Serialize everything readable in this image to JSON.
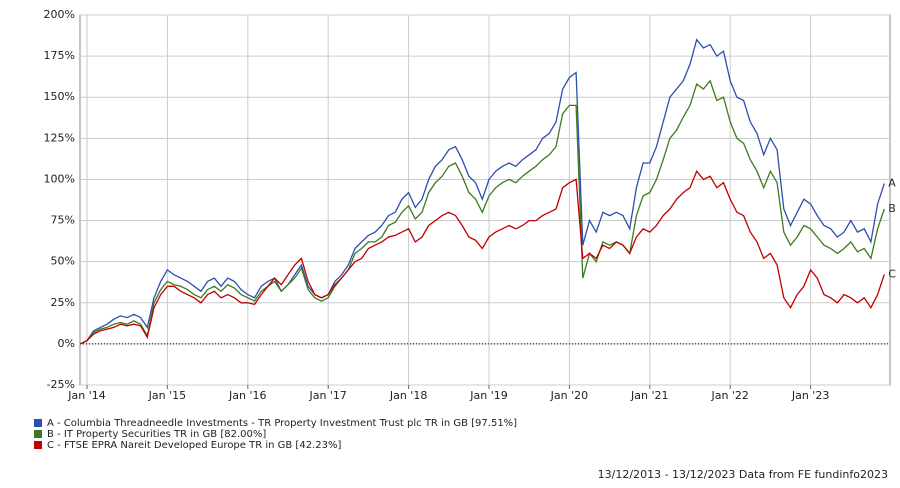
{
  "chart_data": {
    "type": "line",
    "x": [
      "2013-12",
      "2014-01",
      "2014-02",
      "2014-03",
      "2014-04",
      "2014-05",
      "2014-06",
      "2014-07",
      "2014-08",
      "2014-09",
      "2014-10",
      "2014-11",
      "2014-12",
      "2015-01",
      "2015-02",
      "2015-03",
      "2015-04",
      "2015-05",
      "2015-06",
      "2015-07",
      "2015-08",
      "2015-09",
      "2015-10",
      "2015-11",
      "2015-12",
      "2016-01",
      "2016-02",
      "2016-03",
      "2016-04",
      "2016-05",
      "2016-06",
      "2016-07",
      "2016-08",
      "2016-09",
      "2016-10",
      "2016-11",
      "2016-12",
      "2017-01",
      "2017-02",
      "2017-03",
      "2017-04",
      "2017-05",
      "2017-06",
      "2017-07",
      "2017-08",
      "2017-09",
      "2017-10",
      "2017-11",
      "2017-12",
      "2018-01",
      "2018-02",
      "2018-03",
      "2018-04",
      "2018-05",
      "2018-06",
      "2018-07",
      "2018-08",
      "2018-09",
      "2018-10",
      "2018-11",
      "2018-12",
      "2019-01",
      "2019-02",
      "2019-03",
      "2019-04",
      "2019-05",
      "2019-06",
      "2019-07",
      "2019-08",
      "2019-09",
      "2019-10",
      "2019-11",
      "2019-12",
      "2020-01",
      "2020-02",
      "2020-03",
      "2020-04",
      "2020-05",
      "2020-06",
      "2020-07",
      "2020-08",
      "2020-09",
      "2020-10",
      "2020-11",
      "2020-12",
      "2021-01",
      "2021-02",
      "2021-03",
      "2021-04",
      "2021-05",
      "2021-06",
      "2021-07",
      "2021-08",
      "2021-09",
      "2021-10",
      "2021-11",
      "2021-12",
      "2022-01",
      "2022-02",
      "2022-03",
      "2022-04",
      "2022-05",
      "2022-06",
      "2022-07",
      "2022-08",
      "2022-09",
      "2022-10",
      "2022-11",
      "2022-12",
      "2023-01",
      "2023-02",
      "2023-03",
      "2023-04",
      "2023-05",
      "2023-06",
      "2023-07",
      "2023-08",
      "2023-09",
      "2023-10",
      "2023-11",
      "2023-12"
    ],
    "series": [
      {
        "name": "A - Columbia Threadneedle Investments - TR Property Investment Trust plc TR in GB [97.51%]",
        "label": "A",
        "color": "#2b4fb0",
        "values": [
          0,
          2,
          8,
          10,
          12,
          15,
          17,
          16,
          18,
          16,
          10,
          28,
          38,
          45,
          42,
          40,
          38,
          35,
          32,
          38,
          40,
          35,
          40,
          38,
          33,
          30,
          28,
          35,
          38,
          40,
          32,
          36,
          42,
          48,
          35,
          30,
          28,
          30,
          38,
          42,
          48,
          58,
          62,
          66,
          68,
          72,
          78,
          80,
          88,
          92,
          83,
          88,
          100,
          108,
          112,
          118,
          120,
          112,
          102,
          98,
          88,
          100,
          105,
          108,
          110,
          108,
          112,
          115,
          118,
          125,
          128,
          135,
          155,
          162,
          165,
          60,
          75,
          68,
          80,
          78,
          80,
          78,
          70,
          95,
          110,
          110,
          120,
          135,
          150,
          155,
          160,
          170,
          185,
          180,
          182,
          175,
          178,
          160,
          150,
          148,
          135,
          128,
          115,
          125,
          118,
          82,
          72,
          80,
          88,
          85,
          78,
          72,
          70,
          65,
          68,
          75,
          68,
          70,
          62,
          85,
          97.51
        ]
      },
      {
        "name": "B - IT Property Securities TR in GB [82.00%]",
        "label": "B",
        "color": "#3d7a1e",
        "values": [
          0,
          2,
          7,
          9,
          10,
          12,
          13,
          12,
          14,
          12,
          5,
          25,
          33,
          38,
          36,
          35,
          33,
          30,
          28,
          33,
          35,
          32,
          36,
          34,
          30,
          28,
          26,
          32,
          35,
          38,
          32,
          36,
          40,
          46,
          33,
          28,
          26,
          28,
          35,
          40,
          45,
          55,
          58,
          62,
          62,
          65,
          72,
          74,
          80,
          84,
          76,
          80,
          92,
          98,
          102,
          108,
          110,
          102,
          92,
          88,
          80,
          90,
          95,
          98,
          100,
          98,
          102,
          105,
          108,
          112,
          115,
          120,
          140,
          145,
          145,
          40,
          55,
          50,
          62,
          60,
          62,
          60,
          55,
          78,
          90,
          92,
          100,
          112,
          125,
          130,
          138,
          145,
          158,
          155,
          160,
          148,
          150,
          135,
          125,
          122,
          112,
          105,
          95,
          105,
          98,
          68,
          60,
          65,
          72,
          70,
          65,
          60,
          58,
          55,
          58,
          62,
          56,
          58,
          52,
          70,
          82
        ]
      },
      {
        "name": "C - FTSE EPRA Nareit Developed Europe TR in GB [42.23%]",
        "label": "C",
        "color": "#c00000",
        "values": [
          0,
          2,
          6,
          8,
          9,
          10,
          12,
          11,
          12,
          11,
          4,
          22,
          30,
          35,
          35,
          32,
          30,
          28,
          25,
          30,
          32,
          28,
          30,
          28,
          25,
          25,
          24,
          30,
          35,
          40,
          36,
          42,
          48,
          52,
          38,
          30,
          28,
          30,
          36,
          40,
          45,
          50,
          52,
          58,
          60,
          62,
          65,
          66,
          68,
          70,
          62,
          65,
          72,
          75,
          78,
          80,
          78,
          72,
          65,
          63,
          58,
          65,
          68,
          70,
          72,
          70,
          72,
          75,
          75,
          78,
          80,
          82,
          95,
          98,
          100,
          52,
          55,
          52,
          60,
          58,
          62,
          60,
          55,
          65,
          70,
          68,
          72,
          78,
          82,
          88,
          92,
          95,
          105,
          100,
          102,
          95,
          98,
          88,
          80,
          78,
          68,
          62,
          52,
          55,
          48,
          28,
          22,
          30,
          35,
          45,
          40,
          30,
          28,
          25,
          30,
          28,
          25,
          28,
          22,
          30,
          42.23
        ]
      }
    ],
    "ylim": [
      -25,
      200
    ],
    "yticks": [
      {
        "value": -25,
        "label": "-25%"
      },
      {
        "value": 0,
        "label": "0%"
      },
      {
        "value": 25,
        "label": "25%"
      },
      {
        "value": 50,
        "label": "50%"
      },
      {
        "value": 75,
        "label": "75%"
      },
      {
        "value": 100,
        "label": "100%"
      },
      {
        "value": 125,
        "label": "125%"
      },
      {
        "value": 150,
        "label": "150%"
      },
      {
        "value": 175,
        "label": "175%"
      },
      {
        "value": 200,
        "label": "200%"
      }
    ],
    "xticks": [
      {
        "value": "2014-01",
        "label": "Jan '14"
      },
      {
        "value": "2015-01",
        "label": "Jan '15"
      },
      {
        "value": "2016-01",
        "label": "Jan '16"
      },
      {
        "value": "2017-01",
        "label": "Jan '17"
      },
      {
        "value": "2018-01",
        "label": "Jan '18"
      },
      {
        "value": "2019-01",
        "label": "Jan '19"
      },
      {
        "value": "2020-01",
        "label": "Jan '20"
      },
      {
        "value": "2021-01",
        "label": "Jan '21"
      },
      {
        "value": "2022-01",
        "label": "Jan '22"
      },
      {
        "value": "2023-01",
        "label": "Jan '23"
      }
    ],
    "grid": true,
    "footer": "13/12/2013 - 13/12/2023 Data from FE fundinfo2023"
  }
}
